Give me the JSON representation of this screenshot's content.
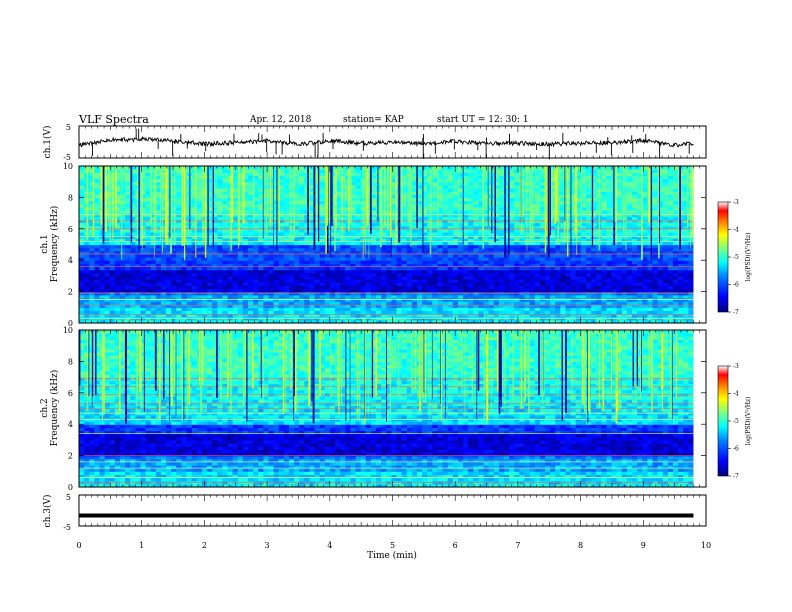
{
  "header": {
    "title": "VLF Spectra",
    "date": "Apr. 12, 2018",
    "station": "station= KAP",
    "start": "start  UT =   12: 30: 1"
  },
  "colors": {
    "colormap": [
      "#00007f",
      "#0000ff",
      "#0080ff",
      "#00ffff",
      "#7fff7f",
      "#ffff00",
      "#ff8000",
      "#ff0000",
      "#ffffff"
    ],
    "trace": "#000000"
  },
  "chart_data": [
    {
      "type": "line",
      "panel": "ch1-waveform",
      "ylabel": "ch.1(V)",
      "ylim": [
        -5,
        5
      ],
      "yticks": [
        "5",
        "-5"
      ],
      "x": [
        0,
        0.5,
        1,
        1.5,
        2,
        2.5,
        3,
        3.5,
        4,
        4.5,
        5,
        5.5,
        6,
        6.5,
        7,
        7.5,
        8,
        8.5,
        9,
        9.5,
        9.8
      ],
      "y": [
        -1.0,
        0.6,
        0.9,
        0.3,
        -0.6,
        -0.2,
        0.4,
        -0.8,
        0.4,
        -0.4,
        -0.1,
        -0.6,
        0.2,
        -0.5,
        -0.4,
        -0.7,
        -0.4,
        -0.3,
        0.5,
        -1.0,
        -0.5
      ]
    },
    {
      "type": "heatmap",
      "panel": "ch1-spectrogram",
      "ylabel": "ch.1\nFrequency (kHz)",
      "ylim": [
        0,
        10
      ],
      "yticks": [
        "0",
        "2",
        "4",
        "6",
        "8",
        "10"
      ],
      "xlim": [
        0,
        9.8
      ],
      "colorbar": {
        "label": "log(PSD)(V²/Hz)",
        "range": [
          -7,
          -3
        ],
        "ticks": [
          "-3",
          "-4",
          "-5",
          "-6",
          "-7"
        ]
      }
    },
    {
      "type": "heatmap",
      "panel": "ch2-spectrogram",
      "ylabel": "ch.2\nFrequency (kHz)",
      "ylim": [
        0,
        10
      ],
      "yticks": [
        "0",
        "2",
        "4",
        "6",
        "8",
        "10"
      ],
      "xlim": [
        0,
        9.8
      ],
      "colorbar": {
        "label": "log(PSD)(V²/Hz)",
        "range": [
          -7,
          -3
        ],
        "ticks": [
          "-3",
          "-4",
          "-5",
          "-6",
          "-7"
        ]
      }
    },
    {
      "type": "line",
      "panel": "ch3-waveform",
      "ylabel": "ch.3(V)",
      "ylim": [
        -5,
        5
      ],
      "yticks": [
        "5",
        "-5"
      ],
      "x": [
        0,
        9.8
      ],
      "y": [
        -1.5,
        -1.5
      ]
    }
  ],
  "xaxis": {
    "label": "Time (min)",
    "ticks": [
      "0",
      "1",
      "2",
      "3",
      "4",
      "5",
      "6",
      "7",
      "8",
      "9",
      "10"
    ],
    "xlim": [
      0,
      10
    ]
  }
}
